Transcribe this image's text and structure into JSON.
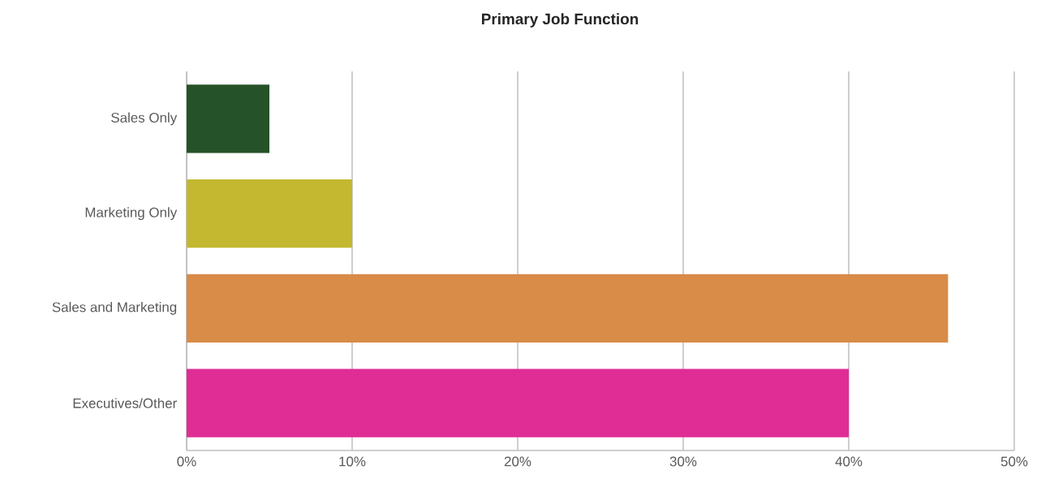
{
  "chart_data": {
    "type": "bar",
    "orientation": "horizontal",
    "title": "Primary Job Function",
    "categories": [
      "Sales Only",
      "Marketing Only",
      "Sales and Marketing",
      "Executives/Other"
    ],
    "values": [
      5,
      10,
      46,
      40
    ],
    "colors": [
      "#255229",
      "#c3b830",
      "#d98b48",
      "#e02d95"
    ],
    "xlim": [
      0,
      50
    ],
    "xticks": [
      {
        "value": 0,
        "label": "0%"
      },
      {
        "value": 10,
        "label": "10%"
      },
      {
        "value": 20,
        "label": "20%"
      },
      {
        "value": 30,
        "label": "30%"
      },
      {
        "value": 40,
        "label": "40%"
      },
      {
        "value": 50,
        "label": "50%"
      }
    ],
    "grid": "x"
  }
}
